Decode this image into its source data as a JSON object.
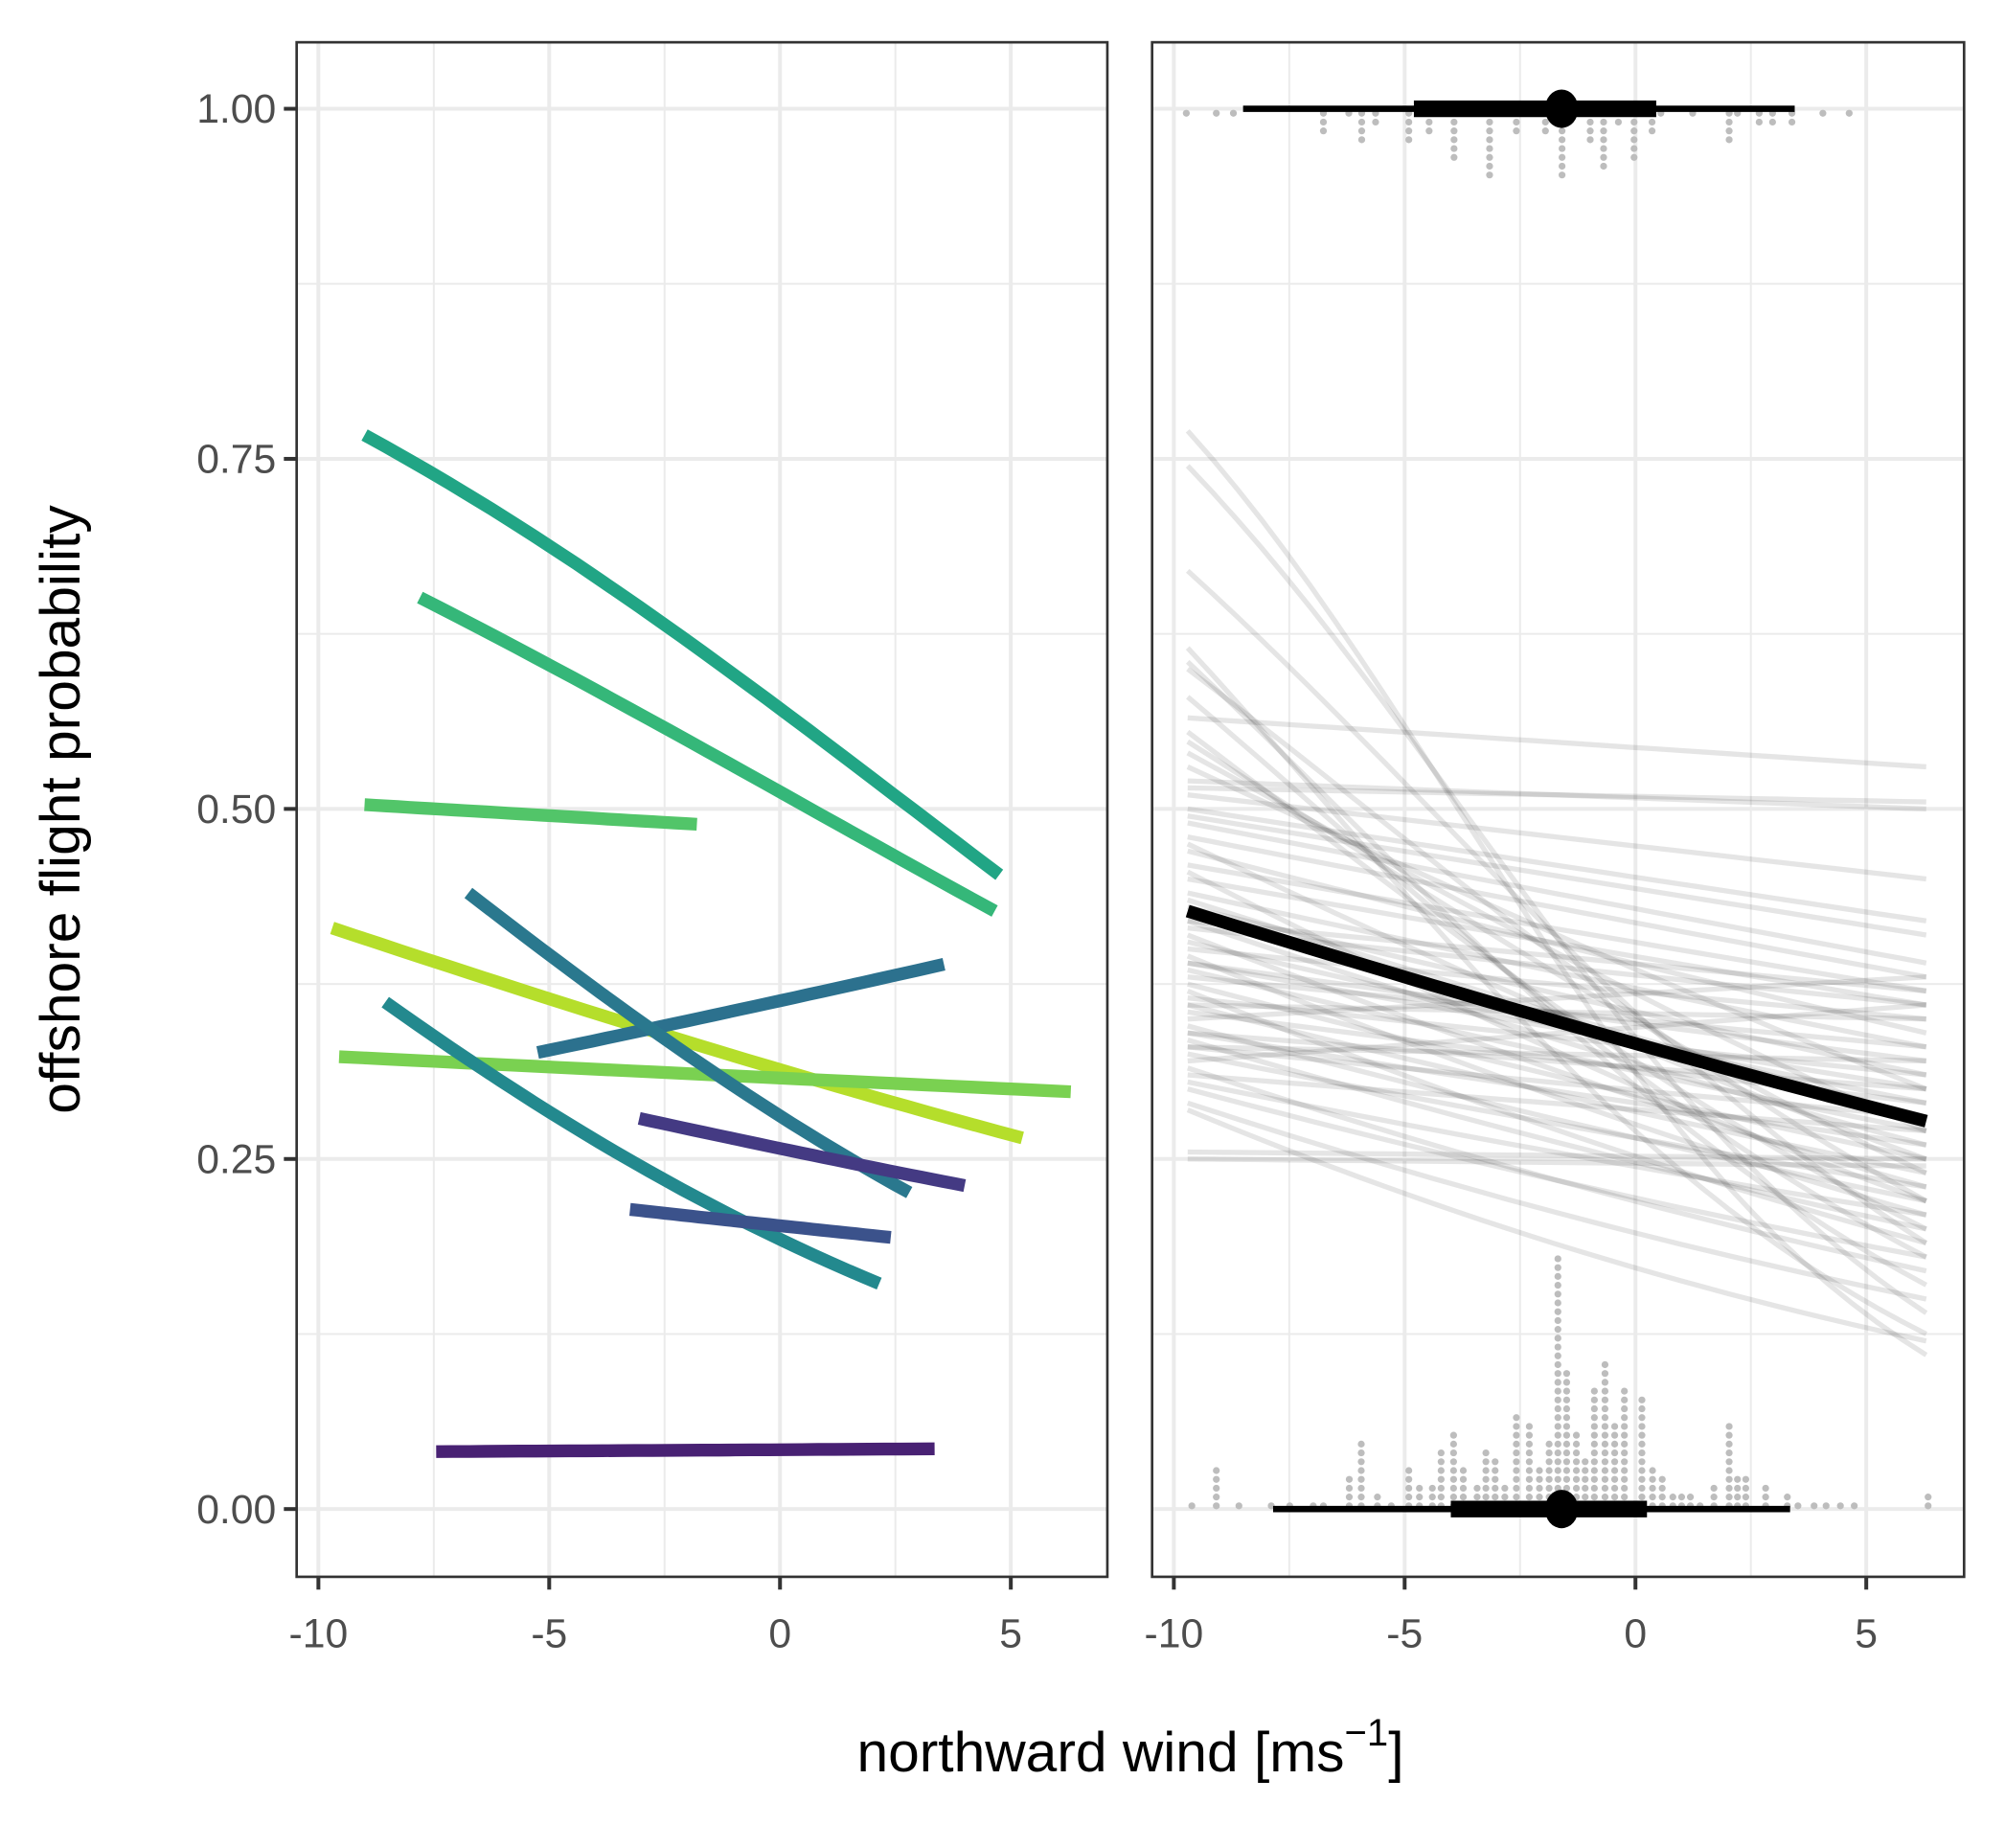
{
  "chart_data": [
    {
      "type": "line",
      "panel": "left",
      "xlim": [
        -10.5,
        7
      ],
      "ylim": [
        -0.05,
        1.05
      ],
      "x_ticks": [
        "-10",
        "-5",
        "0",
        "5"
      ],
      "x_tick_values": [
        -10,
        -5,
        0,
        5
      ],
      "y_ticks": [
        "0.00",
        "0.25",
        "0.50",
        "0.75",
        "1.00"
      ],
      "y_tick_values": [
        0,
        0.25,
        0.5,
        0.75,
        1
      ],
      "grid": true,
      "series": [
        {
          "color": "#21a585",
          "x": [
            -9.0,
            4.75
          ],
          "y": [
            0.767,
            0.453
          ]
        },
        {
          "color": "#35b779",
          "x": [
            -7.8,
            4.65
          ],
          "y": [
            0.651,
            0.427
          ]
        },
        {
          "color": "#52c569",
          "x": [
            -9.0,
            -1.8
          ],
          "y": [
            0.503,
            0.489
          ]
        },
        {
          "color": "#b5de2b",
          "x": [
            -9.7,
            5.25
          ],
          "y": [
            0.415,
            0.265
          ]
        },
        {
          "color": "#7ad151",
          "x": [
            -9.55,
            6.3
          ],
          "y": [
            0.323,
            0.298
          ]
        },
        {
          "color": "#2c718e",
          "x": [
            -5.25,
            3.55
          ],
          "y": [
            0.326,
            0.389
          ]
        },
        {
          "color": "#2a788e",
          "x": [
            -6.75,
            2.8
          ],
          "y": [
            0.44,
            0.226
          ]
        },
        {
          "color": "#23898e",
          "x": [
            -8.55,
            2.15
          ],
          "y": [
            0.362,
            0.161
          ]
        },
        {
          "color": "#443a83",
          "x": [
            -3.05,
            4.0
          ],
          "y": [
            0.279,
            0.231
          ]
        },
        {
          "color": "#3b528b",
          "x": [
            -3.25,
            2.4
          ],
          "y": [
            0.214,
            0.194
          ]
        },
        {
          "color": "#482173",
          "x": [
            -7.45,
            3.35
          ],
          "y": [
            0.041,
            0.043
          ]
        }
      ]
    },
    {
      "type": "line",
      "panel": "right",
      "xlim": [
        -10.5,
        7
      ],
      "ylim": [
        -0.05,
        1.05
      ],
      "x_ticks": [
        "-10",
        "-5",
        "0",
        "5"
      ],
      "x_tick_values": [
        -10,
        -5,
        0,
        5
      ],
      "grid": true,
      "mean_line": {
        "color": "#000000",
        "x": [
          -9.7,
          6.3
        ],
        "y": [
          0.427,
          0.277
        ]
      },
      "draws_x": [
        -9.7,
        6.3
      ],
      "draws_color": "#000000",
      "draws_y": [
        [
          0.77,
          0.11
        ],
        [
          0.745,
          0.14
        ],
        [
          0.67,
          0.19
        ],
        [
          0.615,
          0.125
        ],
        [
          0.605,
          0.16
        ],
        [
          0.6,
          0.22
        ],
        [
          0.58,
          0.18
        ],
        [
          0.565,
          0.53
        ],
        [
          0.555,
          0.2
        ],
        [
          0.548,
          0.24
        ],
        [
          0.54,
          0.27
        ],
        [
          0.53,
          0.3
        ],
        [
          0.52,
          0.5
        ],
        [
          0.515,
          0.505
        ],
        [
          0.51,
          0.45
        ],
        [
          0.5,
          0.42
        ],
        [
          0.495,
          0.41
        ],
        [
          0.49,
          0.39
        ],
        [
          0.48,
          0.38
        ],
        [
          0.475,
          0.25
        ],
        [
          0.47,
          0.34
        ],
        [
          0.46,
          0.37
        ],
        [
          0.455,
          0.22
        ],
        [
          0.45,
          0.36
        ],
        [
          0.44,
          0.33
        ],
        [
          0.435,
          0.28
        ],
        [
          0.43,
          0.31
        ],
        [
          0.42,
          0.26
        ],
        [
          0.415,
          0.36
        ],
        [
          0.41,
          0.23
        ],
        [
          0.405,
          0.29
        ],
        [
          0.4,
          0.35
        ],
        [
          0.395,
          0.21
        ],
        [
          0.39,
          0.3
        ],
        [
          0.385,
          0.27
        ],
        [
          0.38,
          0.33
        ],
        [
          0.375,
          0.25
        ],
        [
          0.37,
          0.19
        ],
        [
          0.365,
          0.31
        ],
        [
          0.36,
          0.24
        ],
        [
          0.355,
          0.29
        ],
        [
          0.35,
          0.38
        ],
        [
          0.345,
          0.22
        ],
        [
          0.34,
          0.26
        ],
        [
          0.335,
          0.2
        ],
        [
          0.33,
          0.32
        ],
        [
          0.325,
          0.23
        ],
        [
          0.32,
          0.36
        ],
        [
          0.315,
          0.17
        ],
        [
          0.31,
          0.27
        ],
        [
          0.305,
          0.21
        ],
        [
          0.3,
          0.18
        ],
        [
          0.29,
          0.15
        ],
        [
          0.285,
          0.12
        ],
        [
          0.255,
          0.25
        ],
        [
          0.25,
          0.245
        ],
        [
          0.33,
          0.28
        ],
        [
          0.36,
          0.35
        ],
        [
          0.39,
          0.32
        ],
        [
          0.42,
          0.37
        ],
        [
          0.34,
          0.3
        ]
      ],
      "dots_color": "#bdbdbd",
      "dots_top": {
        "x": [
          -9.73,
          -9.08,
          -8.71,
          -6.76,
          -6.21,
          -5.93,
          -5.63,
          -4.91,
          -4.47,
          -3.93,
          -3.16,
          -2.58,
          -1.95,
          -1.59,
          -0.98,
          -0.69,
          -0.37,
          -0.03,
          0.36,
          0.55,
          1.24,
          2.03,
          2.21,
          2.68,
          2.97,
          3.39,
          4.06,
          4.63
        ],
        "count": [
          1,
          1,
          1,
          3,
          1,
          4,
          2,
          4,
          3,
          6,
          8,
          3,
          3,
          8,
          4,
          7,
          2,
          6,
          3,
          1,
          1,
          4,
          1,
          2,
          2,
          2,
          1,
          1
        ]
      },
      "dots_bottom": {
        "x": [
          -9.61,
          -9.08,
          -8.59,
          -7.89,
          -7.49,
          -6.98,
          -6.76,
          -6.2,
          -5.94,
          -5.59,
          -5.29,
          -4.91,
          -4.68,
          -4.4,
          -4.21,
          -3.94,
          -3.73,
          -3.43,
          -3.24,
          -3.04,
          -2.83,
          -2.58,
          -2.3,
          -2.08,
          -1.87,
          -1.68,
          -1.49,
          -1.28,
          -1.09,
          -0.89,
          -0.66,
          -0.45,
          -0.24,
          0.14,
          0.37,
          0.58,
          0.81,
          1.0,
          1.19,
          1.4,
          1.7,
          2.03,
          2.21,
          2.39,
          2.82,
          3.29,
          3.52,
          3.87,
          4.13,
          4.44,
          4.74,
          6.34
        ],
        "count": [
          1,
          5,
          1,
          1,
          1,
          1,
          1,
          4,
          8,
          2,
          1,
          5,
          3,
          3,
          7,
          9,
          5,
          3,
          7,
          6,
          3,
          11,
          10,
          5,
          8,
          29,
          16,
          9,
          6,
          14,
          17,
          10,
          14,
          13,
          5,
          4,
          2,
          2,
          2,
          1,
          3,
          10,
          4,
          4,
          3,
          2,
          1,
          1,
          1,
          1,
          1,
          2
        ]
      },
      "interval_top": {
        "y": 1.0,
        "point": -1.6,
        "inner": [
          -4.8,
          0.45
        ],
        "outer": [
          -8.5,
          3.45
        ]
      },
      "interval_bottom": {
        "y": 0.0,
        "point": -1.6,
        "inner": [
          -4.0,
          0.25
        ],
        "outer": [
          -7.85,
          3.35
        ]
      }
    }
  ],
  "axes": {
    "xlabel": "northward wind [ms",
    "xlabel_superscript": "−1",
    "xlabel_close": "]",
    "ylabel": "offshore flight probability"
  }
}
